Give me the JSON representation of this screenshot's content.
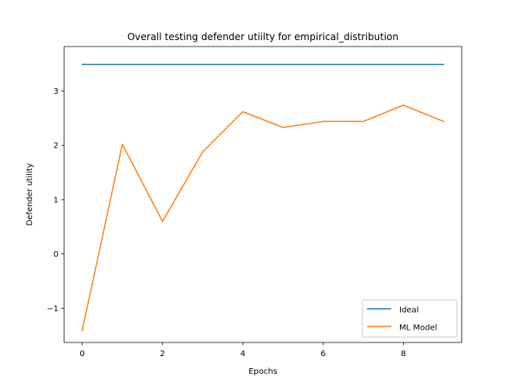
{
  "chart_data": {
    "type": "line",
    "title": "Overall testing defender utiilty for empirical_distribution",
    "xlabel": "Epochs",
    "ylabel": "Defender utility",
    "xlim": [
      -0.45,
      9.45
    ],
    "ylim": [
      -1.63,
      3.82
    ],
    "xticks": [
      0,
      2,
      4,
      6,
      8
    ],
    "yticks": [
      -1,
      0,
      1,
      2,
      3
    ],
    "ytick_labels": [
      "−1",
      "0",
      "1",
      "2",
      "3"
    ],
    "x": [
      0,
      1,
      2,
      3,
      4,
      5,
      6,
      7,
      8,
      9
    ],
    "series": [
      {
        "name": "Ideal",
        "color": "#1f77b4",
        "values": [
          3.49,
          3.49,
          3.49,
          3.49,
          3.49,
          3.49,
          3.49,
          3.49,
          3.49,
          3.49
        ]
      },
      {
        "name": "ML Model",
        "color": "#ff7f0e",
        "values": [
          -1.41,
          2.02,
          0.6,
          1.88,
          2.62,
          2.33,
          2.44,
          2.44,
          2.74,
          2.44
        ]
      }
    ],
    "legend_position": "lower-right",
    "grid": false
  }
}
